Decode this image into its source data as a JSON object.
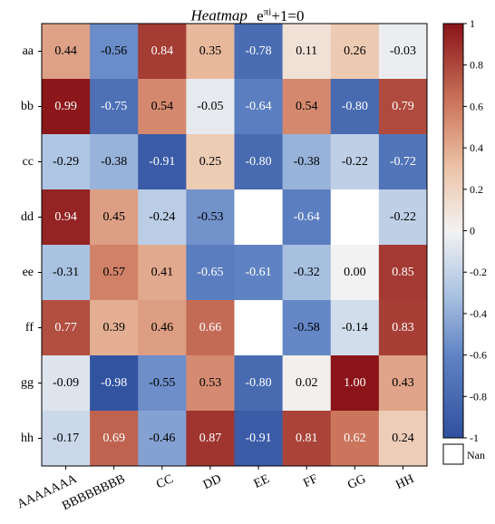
{
  "chart_data": {
    "type": "heatmap",
    "title": "Heatmap",
    "title_formula": {
      "base": "e",
      "exponent": "πi",
      "rest": "+1=0"
    },
    "rows": [
      "aa",
      "bb",
      "cc",
      "dd",
      "ee",
      "ff",
      "gg",
      "hh"
    ],
    "columns": [
      "AAAAAAA",
      "BBBBBBBB",
      "CC",
      "DD",
      "EE",
      "FF",
      "GG",
      "HH"
    ],
    "values": [
      [
        0.44,
        -0.56,
        0.84,
        0.35,
        -0.78,
        0.11,
        0.26,
        -0.03
      ],
      [
        0.99,
        -0.75,
        0.54,
        -0.05,
        -0.64,
        0.54,
        -0.8,
        0.79
      ],
      [
        -0.29,
        -0.38,
        -0.91,
        0.25,
        -0.8,
        -0.38,
        -0.22,
        -0.72
      ],
      [
        0.94,
        0.45,
        -0.24,
        -0.53,
        null,
        -0.64,
        null,
        -0.22
      ],
      [
        -0.31,
        0.57,
        0.41,
        -0.65,
        -0.61,
        -0.32,
        0.0,
        0.85
      ],
      [
        0.77,
        0.39,
        0.46,
        0.66,
        null,
        -0.58,
        -0.14,
        0.83
      ],
      [
        -0.09,
        -0.98,
        -0.55,
        0.53,
        -0.8,
        0.02,
        1.0,
        0.43
      ],
      [
        -0.17,
        0.69,
        -0.46,
        0.87,
        -0.91,
        0.81,
        0.62,
        0.24
      ]
    ],
    "cell_labels": [
      [
        "0.44",
        "-0.56",
        "0.84",
        "0.35",
        "-0.78",
        "0.11",
        "0.26",
        "-0.03"
      ],
      [
        "0.99",
        "-0.75",
        "0.54",
        "-0.05",
        "-0.64",
        "0.54",
        "-0.80",
        "0.79"
      ],
      [
        "-0.29",
        "-0.38",
        "-0.91",
        "0.25",
        "-0.80",
        "-0.38",
        "-0.22",
        "-0.72"
      ],
      [
        "0.94",
        "0.45",
        "-0.24",
        "-0.53",
        "",
        "-0.64",
        "",
        "-0.22"
      ],
      [
        "-0.31",
        "0.57",
        "0.41",
        "-0.65",
        "-0.61",
        "-0.32",
        "0.00",
        "0.85"
      ],
      [
        "0.77",
        "0.39",
        "0.46",
        "0.66",
        "",
        "-0.58",
        "-0.14",
        "0.83"
      ],
      [
        "-0.09",
        "-0.98",
        "-0.55",
        "0.53",
        "-0.80",
        "0.02",
        "1.00",
        "0.43"
      ],
      [
        "-0.17",
        "0.69",
        "-0.46",
        "0.87",
        "-0.91",
        "0.81",
        "0.62",
        "0.24"
      ]
    ],
    "colorbar": {
      "range": [
        -1,
        1
      ],
      "ticks": [
        "1",
        "0.8",
        "0.6",
        "0.4",
        "0.2",
        "0",
        "-0.2",
        "-0.4",
        "-0.6",
        "-0.8",
        "-1"
      ],
      "tick_values": [
        1,
        0.8,
        0.6,
        0.4,
        0.2,
        0,
        -0.2,
        -0.4,
        -0.6,
        -0.8,
        -1
      ],
      "colormap": "RdBu (reversed)",
      "colors": {
        "low": "#2f4f9e",
        "mid": "#f2f2f2",
        "high": "#8a1418"
      }
    },
    "nan_label": "Nan",
    "nan_color": "#ffffff",
    "grid": false
  }
}
